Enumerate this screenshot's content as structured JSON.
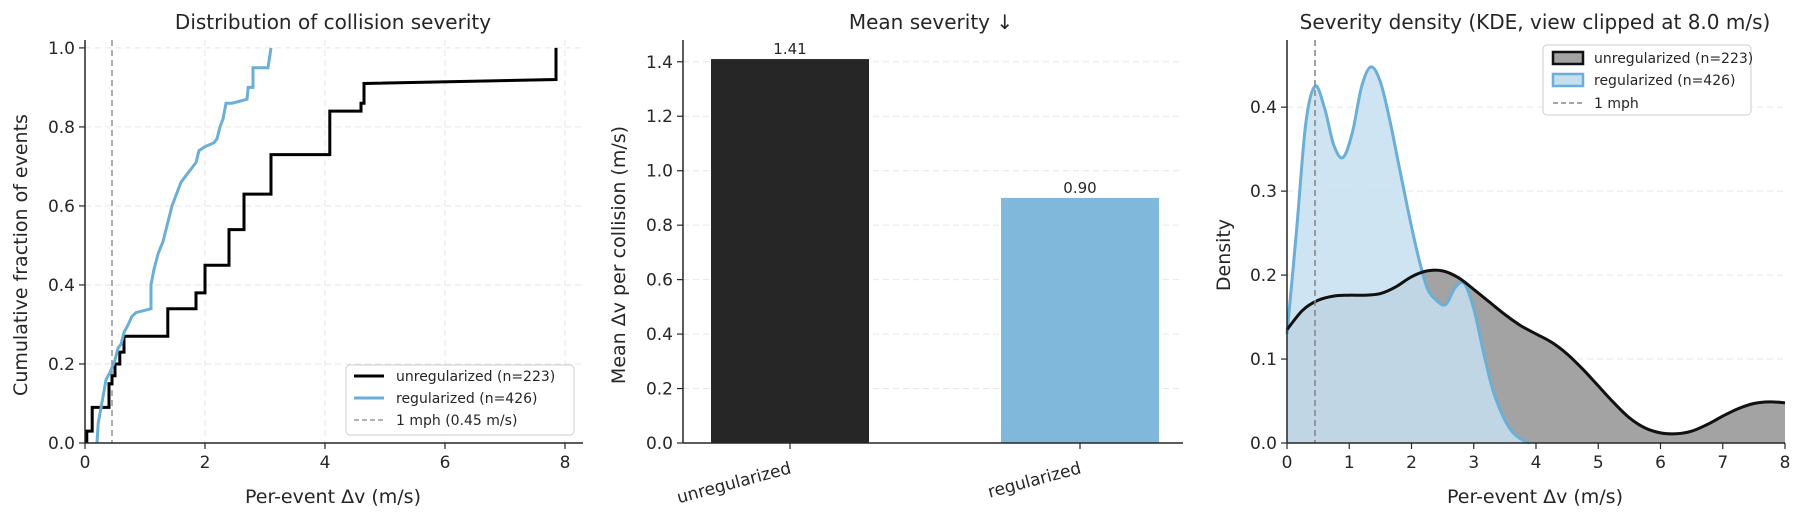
{
  "chart_data": [
    {
      "type": "line",
      "title": "Distribution of collision severity",
      "xlabel": "Per-event Δv (m/s)",
      "ylabel": "Cumulative fraction of events",
      "xlim": [
        0,
        8.3
      ],
      "ylim": [
        0,
        1.02
      ],
      "xticks": [
        0,
        2,
        4,
        6,
        8
      ],
      "yticks": [
        0.0,
        0.2,
        0.4,
        0.6,
        0.8,
        1.0
      ],
      "grid": true,
      "legend": "lower-right",
      "reference_line": {
        "x": 0.45,
        "label": "1 mph (0.45 m/s)",
        "color": "#999999"
      },
      "series": [
        {
          "name": "unregularized (n=223)",
          "color": "#000000",
          "points": [
            [
              0.03,
              0
            ],
            [
              0.03,
              0.03
            ],
            [
              0.12,
              0.03
            ],
            [
              0.12,
              0.09
            ],
            [
              0.4,
              0.09
            ],
            [
              0.4,
              0.15
            ],
            [
              0.45,
              0.15
            ],
            [
              0.45,
              0.17
            ],
            [
              0.5,
              0.17
            ],
            [
              0.5,
              0.2
            ],
            [
              0.58,
              0.2
            ],
            [
              0.58,
              0.23
            ],
            [
              0.65,
              0.23
            ],
            [
              0.65,
              0.27
            ],
            [
              1.38,
              0.27
            ],
            [
              1.38,
              0.34
            ],
            [
              1.85,
              0.34
            ],
            [
              1.85,
              0.38
            ],
            [
              2.0,
              0.38
            ],
            [
              2.0,
              0.45
            ],
            [
              2.4,
              0.45
            ],
            [
              2.4,
              0.54
            ],
            [
              2.65,
              0.54
            ],
            [
              2.65,
              0.63
            ],
            [
              3.1,
              0.63
            ],
            [
              3.1,
              0.73
            ],
            [
              4.08,
              0.73
            ],
            [
              4.08,
              0.84
            ],
            [
              4.6,
              0.84
            ],
            [
              4.6,
              0.86
            ],
            [
              4.65,
              0.86
            ],
            [
              4.65,
              0.91
            ],
            [
              7.85,
              0.92
            ],
            [
              7.85,
              1.0
            ]
          ]
        },
        {
          "name": "regularized (n=426)",
          "color": "#6baed6",
          "points": [
            [
              0.2,
              0
            ],
            [
              0.22,
              0.05
            ],
            [
              0.28,
              0.1
            ],
            [
              0.35,
              0.16
            ],
            [
              0.42,
              0.18
            ],
            [
              0.5,
              0.21
            ],
            [
              0.55,
              0.24
            ],
            [
              0.6,
              0.25
            ],
            [
              0.65,
              0.28
            ],
            [
              0.72,
              0.3
            ],
            [
              0.78,
              0.32
            ],
            [
              0.85,
              0.33
            ],
            [
              1.1,
              0.34
            ],
            [
              1.1,
              0.4
            ],
            [
              1.15,
              0.44
            ],
            [
              1.22,
              0.48
            ],
            [
              1.3,
              0.51
            ],
            [
              1.35,
              0.54
            ],
            [
              1.4,
              0.57
            ],
            [
              1.45,
              0.6
            ],
            [
              1.5,
              0.62
            ],
            [
              1.55,
              0.64
            ],
            [
              1.6,
              0.66
            ],
            [
              1.65,
              0.67
            ],
            [
              1.75,
              0.69
            ],
            [
              1.85,
              0.71
            ],
            [
              1.9,
              0.74
            ],
            [
              2.0,
              0.75
            ],
            [
              2.15,
              0.76
            ],
            [
              2.2,
              0.77
            ],
            [
              2.25,
              0.8
            ],
            [
              2.3,
              0.82
            ],
            [
              2.35,
              0.86
            ],
            [
              2.45,
              0.86
            ],
            [
              2.7,
              0.87
            ],
            [
              2.72,
              0.9
            ],
            [
              2.8,
              0.9
            ],
            [
              2.8,
              0.95
            ],
            [
              3.05,
              0.95
            ],
            [
              3.1,
              1.0
            ]
          ]
        }
      ]
    },
    {
      "type": "bar",
      "title": "Mean severity  ↓",
      "xlabel": "",
      "ylabel": "Mean Δv per collision (m/s)",
      "categories": [
        "unregularized",
        "regularized"
      ],
      "values": [
        1.41,
        0.9
      ],
      "value_labels": [
        "1.41",
        "0.90"
      ],
      "colors": [
        "#262626",
        "#80b8db"
      ],
      "ylim": [
        0,
        1.48
      ],
      "yticks": [
        0.0,
        0.2,
        0.4,
        0.6,
        0.8,
        1.0,
        1.2,
        1.4
      ],
      "grid": true
    },
    {
      "type": "area",
      "title": "Severity density (KDE, view clipped at 8.0 m/s)",
      "xlabel": "Per-event Δv (m/s)",
      "ylabel": "Density",
      "xlim": [
        0,
        8
      ],
      "ylim": [
        0,
        0.48
      ],
      "xticks": [
        0,
        1,
        2,
        3,
        4,
        5,
        6,
        7,
        8
      ],
      "yticks": [
        0.0,
        0.1,
        0.2,
        0.3,
        0.4
      ],
      "grid": true,
      "legend": "top-right",
      "reference_line": {
        "x": 0.45,
        "label": "1 mph",
        "color": "#888888"
      },
      "series": [
        {
          "name": "unregularized (n=223)",
          "line_color": "#111111",
          "fill_color": "#a3a3a3",
          "x": [
            0,
            0.25,
            0.5,
            0.75,
            1.0,
            1.25,
            1.5,
            1.75,
            2.0,
            2.25,
            2.5,
            2.75,
            3.0,
            3.25,
            3.5,
            3.75,
            4.0,
            4.25,
            4.5,
            4.75,
            5.0,
            5.25,
            5.5,
            5.75,
            6.0,
            6.25,
            6.5,
            6.75,
            7.0,
            7.25,
            7.5,
            7.75,
            8.0
          ],
          "y": [
            0.135,
            0.158,
            0.17,
            0.175,
            0.176,
            0.176,
            0.178,
            0.186,
            0.198,
            0.205,
            0.205,
            0.197,
            0.183,
            0.168,
            0.153,
            0.14,
            0.13,
            0.12,
            0.106,
            0.088,
            0.068,
            0.048,
            0.03,
            0.018,
            0.012,
            0.011,
            0.014,
            0.022,
            0.032,
            0.041,
            0.047,
            0.049,
            0.048
          ]
        },
        {
          "name": "regularized (n=426)",
          "line_color": "#6baed6",
          "fill_color": "#c6dff0",
          "x": [
            0,
            0.15,
            0.3,
            0.45,
            0.6,
            0.75,
            0.9,
            1.05,
            1.2,
            1.35,
            1.5,
            1.65,
            1.8,
            1.95,
            2.1,
            2.25,
            2.4,
            2.55,
            2.7,
            2.85,
            3.0,
            3.15,
            3.3,
            3.45,
            3.6,
            3.75,
            3.9
          ],
          "y": [
            0.13,
            0.25,
            0.38,
            0.425,
            0.4,
            0.355,
            0.34,
            0.37,
            0.425,
            0.448,
            0.43,
            0.385,
            0.33,
            0.275,
            0.225,
            0.185,
            0.17,
            0.165,
            0.185,
            0.19,
            0.16,
            0.11,
            0.065,
            0.035,
            0.015,
            0.005,
            0.0
          ]
        }
      ]
    }
  ]
}
